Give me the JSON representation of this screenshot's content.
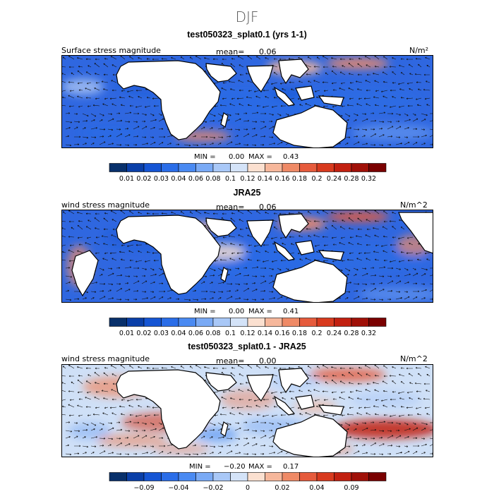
{
  "title": "DJF",
  "colorbar_pos": [
    "#08306b",
    "#0a3fa8",
    "#1555d4",
    "#2a6de8",
    "#4a8af2",
    "#7aaaf5",
    "#a9c8f7",
    "#d4e3f8",
    "#fbe0d0",
    "#f6b79b",
    "#ef8a66",
    "#e65b3c",
    "#d83a1e",
    "#c22010",
    "#a01008",
    "#7a0000"
  ],
  "colorbar_diff": [
    "#08306b",
    "#0a3fa8",
    "#1555d4",
    "#2a6de8",
    "#4a8af2",
    "#7aaaf5",
    "#a9c8f7",
    "#d4e3f8",
    "#fbe0d0",
    "#f6b79b",
    "#ef8a66",
    "#e65b3c",
    "#d83a1e",
    "#c22010",
    "#a01008",
    "#7a0000"
  ],
  "chart_data": [
    {
      "type": "heatmap",
      "title": "test050323_splat0.1 (yrs 1-1)",
      "left_label": "Surface stress magnitude",
      "mean_label": "mean=",
      "mean": "0.06",
      "units": "N/m²",
      "min_label": "MIN =",
      "min": "0.00",
      "max_label": "MAX =",
      "max": "0.43",
      "colorbar_ticks": [
        "0.01",
        "0.02",
        "0.03",
        "0.04",
        "0.06",
        "0.08",
        "0.1",
        "0.12",
        "0.14",
        "0.16",
        "0.18",
        "0.2",
        "0.24",
        "0.28",
        "0.32"
      ]
    },
    {
      "type": "heatmap",
      "title": "JRA25",
      "left_label": "wind stress magnitude",
      "mean_label": "mean=",
      "mean": "0.06",
      "units": "N/m^2",
      "min_label": "MIN =",
      "min": "0.00",
      "max_label": "MAX =",
      "max": "0.41",
      "colorbar_ticks": [
        "0.01",
        "0.02",
        "0.03",
        "0.04",
        "0.06",
        "0.08",
        "0.1",
        "0.12",
        "0.14",
        "0.16",
        "0.18",
        "0.2",
        "0.24",
        "0.28",
        "0.32"
      ]
    },
    {
      "type": "heatmap",
      "title": "test050323_splat0.1 - JRA25",
      "left_label": "wind stress magnitude",
      "mean_label": "mean=",
      "mean": "0.00",
      "units": "N/m^2",
      "min_label": "MIN =",
      "min": "−0.20",
      "max_label": "MAX =",
      "max": "0.17",
      "colorbar_ticks": [
        "−0.09",
        "−0.04",
        "−0.02",
        "0",
        "0.02",
        "0.04",
        "0.09"
      ]
    }
  ]
}
